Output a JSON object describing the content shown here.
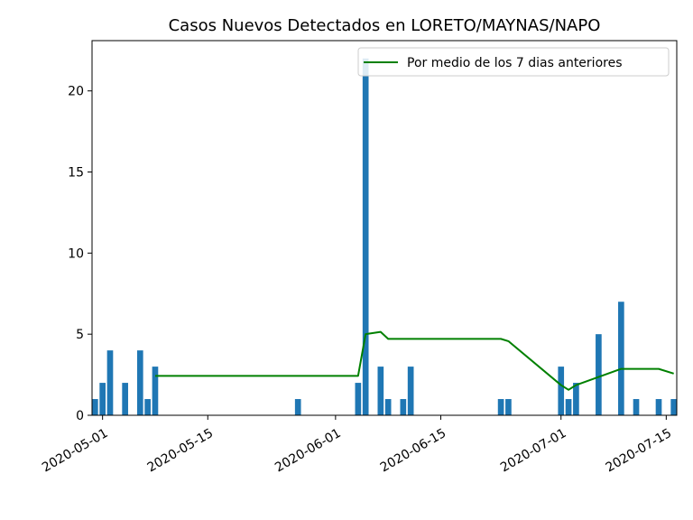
{
  "chart_data": {
    "type": "bar",
    "title": "Casos Nuevos Detectados en LORETO/MAYNAS/NAPO",
    "xlabel": "",
    "ylabel": "",
    "x_range": [
      "2020-04-30",
      "2020-07-16"
    ],
    "ylim": [
      0,
      23.1
    ],
    "grid": false,
    "legend_position": "top-right",
    "colors": {
      "bars": "#1f77b4",
      "line": "#008000"
    },
    "x_ticks": [
      "2020-05-01",
      "2020-05-15",
      "2020-06-01",
      "2020-06-15",
      "2020-07-01",
      "2020-07-15"
    ],
    "y_ticks": [
      0,
      5,
      10,
      15,
      20
    ],
    "bars": [
      {
        "date": "2020-04-30",
        "value": 1
      },
      {
        "date": "2020-05-01",
        "value": 2
      },
      {
        "date": "2020-05-02",
        "value": 4
      },
      {
        "date": "2020-05-04",
        "value": 2
      },
      {
        "date": "2020-05-06",
        "value": 4
      },
      {
        "date": "2020-05-07",
        "value": 1
      },
      {
        "date": "2020-05-08",
        "value": 3
      },
      {
        "date": "2020-05-27",
        "value": 1
      },
      {
        "date": "2020-06-04",
        "value": 2
      },
      {
        "date": "2020-06-05",
        "value": 22
      },
      {
        "date": "2020-06-07",
        "value": 3
      },
      {
        "date": "2020-06-08",
        "value": 1
      },
      {
        "date": "2020-06-10",
        "value": 1
      },
      {
        "date": "2020-06-11",
        "value": 3
      },
      {
        "date": "2020-06-23",
        "value": 1
      },
      {
        "date": "2020-06-24",
        "value": 1
      },
      {
        "date": "2020-07-01",
        "value": 3
      },
      {
        "date": "2020-07-02",
        "value": 1
      },
      {
        "date": "2020-07-03",
        "value": 2
      },
      {
        "date": "2020-07-06",
        "value": 5
      },
      {
        "date": "2020-07-09",
        "value": 7
      },
      {
        "date": "2020-07-11",
        "value": 1
      },
      {
        "date": "2020-07-14",
        "value": 1
      },
      {
        "date": "2020-07-16",
        "value": 1
      }
    ],
    "series": [
      {
        "name": "Por medio de los 7 dias anteriores",
        "points": [
          {
            "date": "2020-05-08",
            "value": 2.43
          },
          {
            "date": "2020-06-04",
            "value": 2.43
          },
          {
            "date": "2020-06-05",
            "value": 5.0
          },
          {
            "date": "2020-06-07",
            "value": 5.14
          },
          {
            "date": "2020-06-08",
            "value": 4.71
          },
          {
            "date": "2020-06-23",
            "value": 4.71
          },
          {
            "date": "2020-06-24",
            "value": 4.57
          },
          {
            "date": "2020-07-01",
            "value": 1.86
          },
          {
            "date": "2020-07-02",
            "value": 1.57
          },
          {
            "date": "2020-07-03",
            "value": 1.86
          },
          {
            "date": "2020-07-09",
            "value": 2.86
          },
          {
            "date": "2020-07-14",
            "value": 2.86
          },
          {
            "date": "2020-07-16",
            "value": 2.57
          }
        ]
      }
    ]
  }
}
